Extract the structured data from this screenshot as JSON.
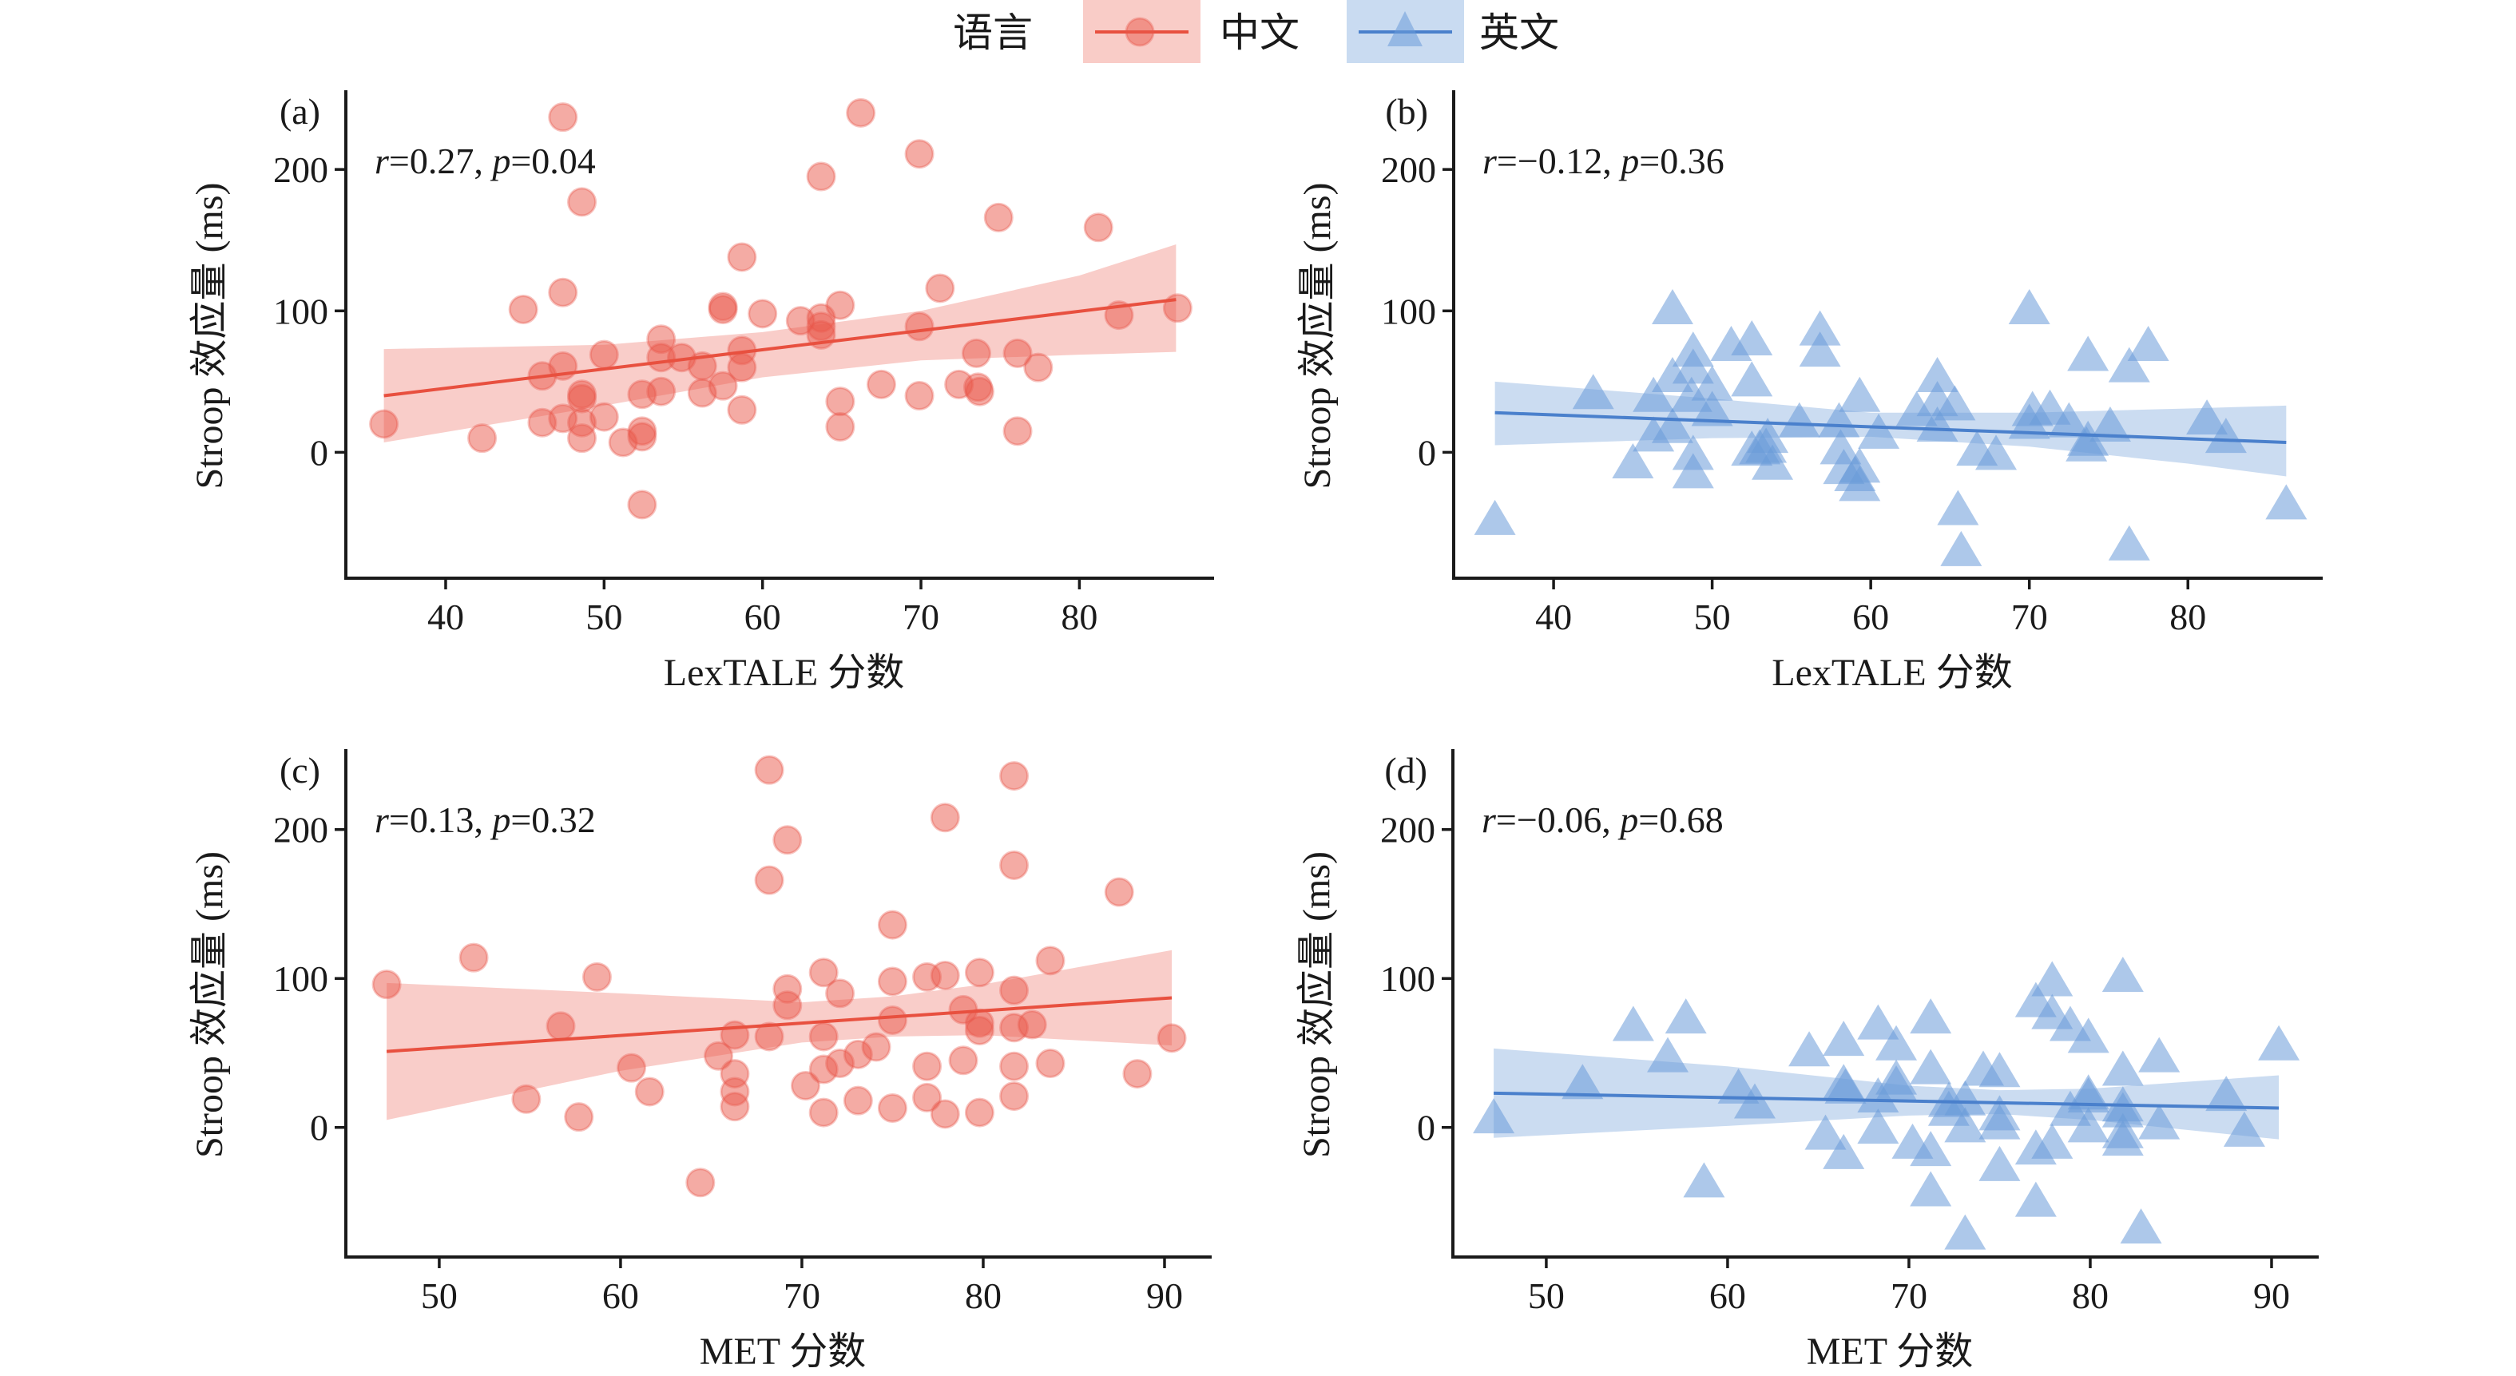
{
  "legend": {
    "title": "语言",
    "entries": [
      {
        "key": "zh",
        "label": "中文",
        "marker": "circle",
        "color": "#e9574a",
        "box_color": "#f9ccc7"
      },
      {
        "key": "en",
        "label": "英文",
        "marker": "triangle",
        "color": "#4a80cc",
        "box_color": "#c9dbf1"
      }
    ]
  },
  "chart_data": [
    {
      "panel": "(a)",
      "type": "scatter",
      "language": "zh",
      "xlabel": "LexTALE 分数",
      "ylabel": "Stroop 效应量 (ms)",
      "xlim": [
        33.7,
        88.5
      ],
      "ylim": [
        -89,
        256
      ],
      "xticks": [
        40,
        50,
        60,
        70,
        80
      ],
      "yticks": [
        0,
        100,
        200
      ],
      "annotation": {
        "r_label": "r",
        "r_value": "=0.27, ",
        "p_label": "p",
        "p_value": "=0.04"
      },
      "fit": {
        "x": [
          36.1,
          86.1
        ],
        "y": [
          40,
          108
        ]
      },
      "ci": {
        "x": [
          36.1,
          50,
          60,
          70,
          80,
          86.1
        ],
        "lower": [
          7,
          33,
          53,
          65,
          69,
          71
        ],
        "upper": [
          73,
          76,
          85,
          100,
          125,
          147
        ]
      },
      "points": [
        [
          36.1,
          20
        ],
        [
          42.3,
          10
        ],
        [
          44.9,
          101
        ],
        [
          46.1,
          54
        ],
        [
          46.1,
          21
        ],
        [
          47.4,
          237
        ],
        [
          47.4,
          113
        ],
        [
          47.4,
          61
        ],
        [
          47.4,
          24
        ],
        [
          48.6,
          177
        ],
        [
          48.6,
          41
        ],
        [
          48.6,
          38
        ],
        [
          48.6,
          21
        ],
        [
          48.6,
          10
        ],
        [
          50.0,
          69
        ],
        [
          50.0,
          25
        ],
        [
          51.2,
          7
        ],
        [
          52.4,
          41
        ],
        [
          52.4,
          15
        ],
        [
          52.4,
          11
        ],
        [
          52.4,
          -37
        ],
        [
          53.6,
          80
        ],
        [
          53.6,
          67
        ],
        [
          53.6,
          43
        ],
        [
          54.9,
          67
        ],
        [
          56.2,
          61
        ],
        [
          56.2,
          42
        ],
        [
          57.5,
          103
        ],
        [
          57.5,
          101
        ],
        [
          57.5,
          47
        ],
        [
          58.7,
          138
        ],
        [
          58.7,
          72
        ],
        [
          58.7,
          60
        ],
        [
          58.7,
          30
        ],
        [
          60.0,
          98
        ],
        [
          62.4,
          93
        ],
        [
          63.7,
          195
        ],
        [
          63.7,
          95
        ],
        [
          63.7,
          89
        ],
        [
          63.7,
          83
        ],
        [
          64.9,
          104
        ],
        [
          64.9,
          36
        ],
        [
          64.9,
          18
        ],
        [
          66.2,
          240
        ],
        [
          67.5,
          48
        ],
        [
          69.9,
          211
        ],
        [
          69.9,
          89
        ],
        [
          69.9,
          40
        ],
        [
          71.2,
          116
        ],
        [
          72.4,
          48
        ],
        [
          73.5,
          70
        ],
        [
          73.6,
          46
        ],
        [
          73.7,
          43
        ],
        [
          74.9,
          166
        ],
        [
          76.1,
          70
        ],
        [
          76.1,
          15
        ],
        [
          77.4,
          60
        ],
        [
          81.2,
          159
        ],
        [
          82.5,
          97
        ],
        [
          86.2,
          102
        ]
      ]
    },
    {
      "panel": "(b)",
      "type": "scatter",
      "language": "en",
      "xlabel": "LexTALE 分数",
      "ylabel": "Stroop 效应量 (ms)",
      "xlim": [
        33.7,
        88.5
      ],
      "ylim": [
        -89,
        256
      ],
      "xticks": [
        40,
        50,
        60,
        70,
        80
      ],
      "yticks": [
        0,
        100,
        200
      ],
      "annotation": {
        "r_label": "r",
        "r_value": "=−0.12, ",
        "p_label": "p",
        "p_value": "=0.36"
      },
      "fit": {
        "x": [
          36.3,
          86.2
        ],
        "y": [
          28,
          7
        ]
      },
      "ci": {
        "x": [
          36.3,
          50,
          60,
          70,
          80,
          86.2
        ],
        "lower": [
          5,
          10,
          11,
          4,
          -8,
          -17
        ],
        "upper": [
          50,
          38,
          28,
          28,
          31,
          33
        ]
      },
      "points": [
        [
          36.3,
          -49
        ],
        [
          42.5,
          40
        ],
        [
          45.0,
          -9
        ],
        [
          46.3,
          38
        ],
        [
          46.3,
          10
        ],
        [
          47.5,
          100
        ],
        [
          47.5,
          52
        ],
        [
          47.5,
          16
        ],
        [
          48.8,
          70
        ],
        [
          48.8,
          58
        ],
        [
          48.7,
          38
        ],
        [
          48.8,
          -3
        ],
        [
          48.8,
          -16
        ],
        [
          50.0,
          46
        ],
        [
          50.0,
          28
        ],
        [
          51.2,
          74
        ],
        [
          52.5,
          78
        ],
        [
          52.5,
          49
        ],
        [
          52.5,
          0
        ],
        [
          53.0,
          1
        ],
        [
          53.5,
          9
        ],
        [
          53.8,
          -10
        ],
        [
          53.4,
          2
        ],
        [
          55.5,
          20
        ],
        [
          56.8,
          85
        ],
        [
          56.8,
          70
        ],
        [
          58.1,
          1
        ],
        [
          58.0,
          20
        ],
        [
          58.3,
          -13
        ],
        [
          59.3,
          38
        ],
        [
          59.3,
          -12
        ],
        [
          59.3,
          -25
        ],
        [
          59.0,
          -18
        ],
        [
          60.5,
          12
        ],
        [
          62.9,
          28
        ],
        [
          64.2,
          52
        ],
        [
          64.2,
          35
        ],
        [
          64.2,
          17
        ],
        [
          65.3,
          32
        ],
        [
          65.5,
          -42
        ],
        [
          65.7,
          -71
        ],
        [
          66.7,
          0
        ],
        [
          67.9,
          -3
        ],
        [
          70.0,
          100
        ],
        [
          70.2,
          28
        ],
        [
          70.0,
          19
        ],
        [
          71.3,
          29
        ],
        [
          72.5,
          20
        ],
        [
          73.7,
          67
        ],
        [
          73.7,
          7
        ],
        [
          73.6,
          3
        ],
        [
          75.1,
          17
        ],
        [
          76.3,
          59
        ],
        [
          76.3,
          -67
        ],
        [
          77.5,
          74
        ],
        [
          81.2,
          22
        ],
        [
          82.4,
          9
        ],
        [
          86.2,
          -38
        ]
      ]
    },
    {
      "panel": "(c)",
      "type": "scatter",
      "language": "zh",
      "xlabel": "MET 分数",
      "ylabel": "Stroop 效应量 (ms)",
      "xlim": [
        44.85,
        92.6
      ],
      "ylim": [
        -87,
        254
      ],
      "xticks": [
        50,
        60,
        70,
        80,
        90
      ],
      "yticks": [
        0,
        100,
        200
      ],
      "annotation": {
        "r_label": "r",
        "r_value": "=0.13, ",
        "p_label": "p",
        "p_value": "=0.32"
      },
      "fit": {
        "x": [
          47.1,
          90.4
        ],
        "y": [
          51,
          87
        ]
      },
      "ci": {
        "x": [
          47.1,
          60,
          70,
          75,
          80,
          90.4
        ],
        "lower": [
          5,
          38,
          57,
          61,
          62,
          55
        ],
        "upper": [
          97,
          90,
          84,
          88,
          96,
          119
        ]
      },
      "points": [
        [
          47.1,
          96
        ],
        [
          51.9,
          114
        ],
        [
          54.8,
          19
        ],
        [
          56.7,
          68
        ],
        [
          57.7,
          7
        ],
        [
          58.7,
          101
        ],
        [
          60.6,
          40
        ],
        [
          61.6,
          24
        ],
        [
          64.4,
          -37
        ],
        [
          65.4,
          48
        ],
        [
          66.3,
          62
        ],
        [
          66.3,
          36
        ],
        [
          66.3,
          24
        ],
        [
          66.3,
          14
        ],
        [
          68.2,
          240
        ],
        [
          68.2,
          166
        ],
        [
          68.2,
          61
        ],
        [
          69.2,
          193
        ],
        [
          69.2,
          93
        ],
        [
          69.2,
          82
        ],
        [
          70.2,
          28
        ],
        [
          71.2,
          104
        ],
        [
          71.2,
          61
        ],
        [
          71.2,
          39
        ],
        [
          71.2,
          10
        ],
        [
          72.1,
          90
        ],
        [
          72.1,
          43
        ],
        [
          73.1,
          49
        ],
        [
          73.1,
          18
        ],
        [
          74.1,
          54
        ],
        [
          75.0,
          136
        ],
        [
          75.0,
          98
        ],
        [
          75.0,
          72
        ],
        [
          75.0,
          13
        ],
        [
          76.9,
          101
        ],
        [
          76.9,
          41
        ],
        [
          76.9,
          20
        ],
        [
          77.9,
          208
        ],
        [
          77.9,
          102
        ],
        [
          77.9,
          9
        ],
        [
          78.9,
          79
        ],
        [
          78.9,
          45
        ],
        [
          79.8,
          104
        ],
        [
          79.8,
          70
        ],
        [
          79.8,
          65
        ],
        [
          79.8,
          10
        ],
        [
          81.7,
          236
        ],
        [
          81.7,
          176
        ],
        [
          81.7,
          92
        ],
        [
          81.7,
          67
        ],
        [
          81.7,
          41
        ],
        [
          81.7,
          21
        ],
        [
          82.7,
          69
        ],
        [
          83.7,
          112
        ],
        [
          83.7,
          43
        ],
        [
          87.5,
          158
        ],
        [
          88.5,
          36
        ],
        [
          90.4,
          60
        ]
      ]
    },
    {
      "panel": "(d)",
      "type": "scatter",
      "language": "en",
      "xlabel": "MET 分数",
      "ylabel": "Stroop 效应量 (ms)",
      "xlim": [
        44.85,
        92.6
      ],
      "ylim": [
        -87,
        254
      ],
      "xticks": [
        50,
        60,
        70,
        80,
        90
      ],
      "yticks": [
        0,
        100,
        200
      ],
      "annotation": {
        "r_label": "r",
        "r_value": "=−0.06, ",
        "p_label": "p",
        "p_value": "=0.68"
      },
      "fit": {
        "x": [
          47.1,
          90.4
        ],
        "y": [
          23,
          13
        ]
      },
      "ci": {
        "x": [
          47.1,
          60,
          70,
          75,
          80,
          90.4
        ],
        "lower": [
          -7,
          1,
          8,
          9,
          5,
          -8
        ],
        "upper": [
          53,
          41,
          28,
          25,
          26,
          35
        ]
      },
      "points": [
        [
          47.1,
          5
        ],
        [
          52.0,
          28
        ],
        [
          54.8,
          67
        ],
        [
          56.7,
          46
        ],
        [
          57.7,
          72
        ],
        [
          58.7,
          -38
        ],
        [
          60.6,
          25
        ],
        [
          61.5,
          15
        ],
        [
          64.5,
          50
        ],
        [
          65.4,
          -6
        ],
        [
          66.4,
          57
        ],
        [
          66.4,
          28
        ],
        [
          66.5,
          25
        ],
        [
          66.4,
          -19
        ],
        [
          68.3,
          68
        ],
        [
          68.3,
          19
        ],
        [
          68.3,
          -2
        ],
        [
          69.3,
          54
        ],
        [
          69.3,
          31
        ],
        [
          69.3,
          27
        ],
        [
          70.2,
          -12
        ],
        [
          71.2,
          72
        ],
        [
          71.2,
          38
        ],
        [
          71.2,
          -17
        ],
        [
          71.2,
          -44
        ],
        [
          72.2,
          16
        ],
        [
          72.2,
          10
        ],
        [
          73.1,
          17
        ],
        [
          73.1,
          -1
        ],
        [
          73.1,
          -73
        ],
        [
          74.1,
          37
        ],
        [
          75.0,
          36
        ],
        [
          75.0,
          7
        ],
        [
          75.0,
          1
        ],
        [
          75.0,
          -27
        ],
        [
          77.0,
          83
        ],
        [
          77.0,
          -16
        ],
        [
          77.0,
          -51
        ],
        [
          77.9,
          97
        ],
        [
          77.9,
          75
        ],
        [
          77.9,
          -12
        ],
        [
          78.9,
          67
        ],
        [
          78.9,
          10
        ],
        [
          79.9,
          59
        ],
        [
          79.9,
          19
        ],
        [
          79.9,
          21
        ],
        [
          79.9,
          -1
        ],
        [
          81.8,
          100
        ],
        [
          81.8,
          37
        ],
        [
          81.8,
          13
        ],
        [
          81.8,
          9
        ],
        [
          81.8,
          -5
        ],
        [
          81.8,
          -10
        ],
        [
          82.8,
          -69
        ],
        [
          83.8,
          46
        ],
        [
          83.8,
          1
        ],
        [
          87.5,
          20
        ],
        [
          88.5,
          -4
        ],
        [
          90.4,
          54
        ]
      ]
    }
  ]
}
